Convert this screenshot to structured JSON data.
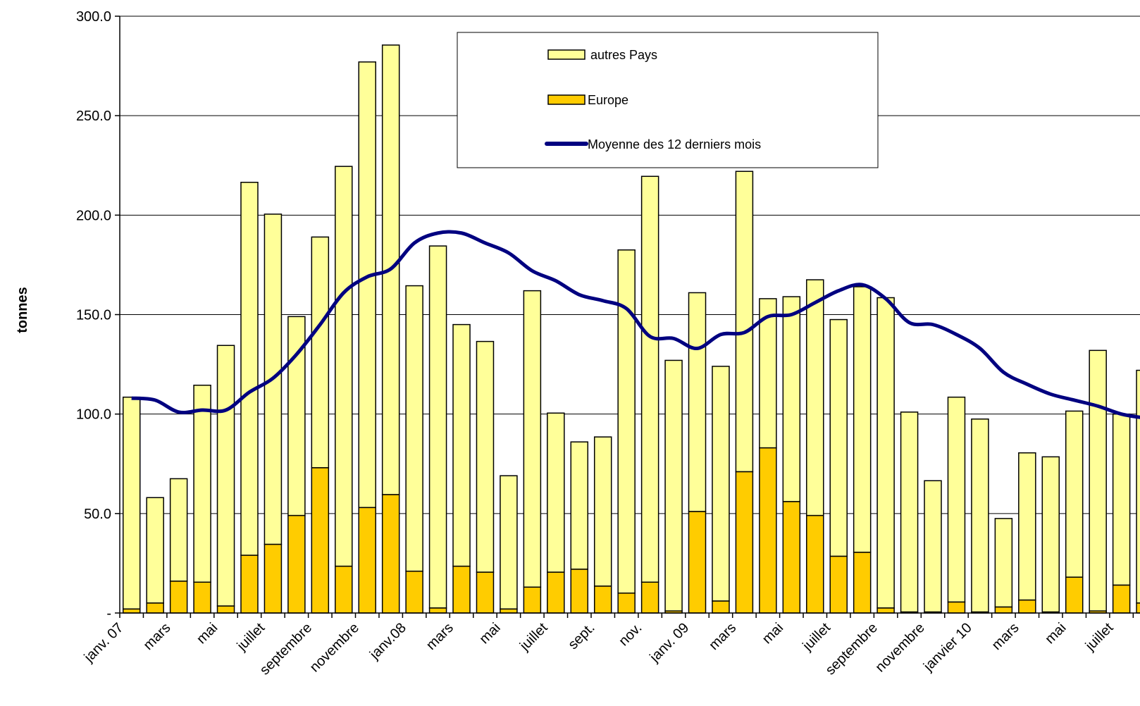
{
  "chart_data": {
    "type": "bar",
    "stacked": true,
    "ylabel": "tonnes",
    "xlabel": "",
    "ylim": [
      0,
      300
    ],
    "yticks": [
      "-",
      "50.0",
      "100.0",
      "150.0",
      "200.0",
      "250.0",
      "300.0"
    ],
    "grid": true,
    "legend_position": "top-center",
    "x_tick_labels": [
      {
        "index": 0,
        "label": "janv. 07"
      },
      {
        "index": 2,
        "label": "mars"
      },
      {
        "index": 4,
        "label": "mai"
      },
      {
        "index": 6,
        "label": "juillet"
      },
      {
        "index": 8,
        "label": "septembre"
      },
      {
        "index": 10,
        "label": "novembre"
      },
      {
        "index": 12,
        "label": "janv.08"
      },
      {
        "index": 14,
        "label": "mars"
      },
      {
        "index": 16,
        "label": "mai"
      },
      {
        "index": 18,
        "label": "juillet"
      },
      {
        "index": 20,
        "label": "sept."
      },
      {
        "index": 22,
        "label": "nov."
      },
      {
        "index": 24,
        "label": "janv. 09"
      },
      {
        "index": 26,
        "label": "mars"
      },
      {
        "index": 28,
        "label": "mai"
      },
      {
        "index": 30,
        "label": "juillet"
      },
      {
        "index": 32,
        "label": "septembre"
      },
      {
        "index": 34,
        "label": "novembre"
      },
      {
        "index": 36,
        "label": "janvier 10"
      },
      {
        "index": 38,
        "label": "mars"
      },
      {
        "index": 40,
        "label": "mai"
      },
      {
        "index": 42,
        "label": "juillet"
      }
    ],
    "series": [
      {
        "name": "Europe",
        "kind": "bar",
        "color": "#FFCC00",
        "values": [
          2,
          5,
          16,
          15.5,
          3.5,
          29,
          34.5,
          49,
          73,
          23.5,
          53,
          59.5,
          21,
          2.5,
          23.5,
          20.5,
          2,
          13,
          20.5,
          22,
          13.5,
          10,
          15.5,
          1,
          51,
          6,
          71,
          83,
          56,
          49,
          28.5,
          30.5,
          2.5,
          0.5,
          0.5,
          5.5,
          0.5,
          3,
          6.5,
          0.5,
          18,
          1,
          14,
          5
        ]
      },
      {
        "name": "autres Pays",
        "kind": "bar",
        "color": "#FFFF99",
        "values": [
          106.5,
          53,
          51.5,
          99,
          131,
          187.5,
          166,
          100,
          116,
          201,
          224,
          226,
          143.5,
          182,
          121.5,
          116,
          67,
          149,
          80,
          64,
          75,
          172.5,
          204,
          126,
          110,
          118,
          151,
          75,
          103,
          118.5,
          119,
          133.5,
          156,
          100.5,
          66,
          103,
          97,
          44.5,
          74,
          78,
          83.5,
          131,
          86,
          117
        ]
      },
      {
        "name": "Moyenne des 12 derniers mois",
        "kind": "line",
        "color": "#000080",
        "values": [
          108,
          107,
          101,
          102,
          102,
          111,
          118,
          130,
          145,
          161,
          169,
          173,
          186,
          191,
          191,
          186,
          181,
          172,
          167,
          160,
          157,
          153,
          139,
          138,
          133,
          140,
          141,
          149,
          150,
          156,
          162,
          165,
          158,
          146,
          145,
          140,
          133,
          121,
          115,
          110,
          107,
          104,
          100,
          98
        ]
      }
    ]
  }
}
